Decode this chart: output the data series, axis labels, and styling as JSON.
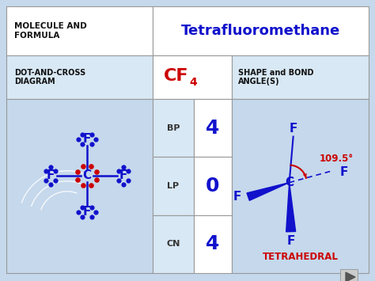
{
  "title": "Tetrafluoromethane",
  "title_color": "#1111CC",
  "bg_color": "#C5D8EC",
  "white_bg": "#FFFFFF",
  "header_bg": "#D8E8F4",
  "formula_color": "#CC0000",
  "bp_label": "BP",
  "bp_value": "4",
  "lp_label": "LP",
  "lp_value": "0",
  "cn_label": "CN",
  "cn_value": "4",
  "shape_label": "TETRAHEDRAL",
  "shape_color": "#CC0000",
  "bond_angle": "109.5°",
  "bond_angle_color": "#CC0000",
  "value_color": "#1111CC",
  "label_color": "#333333",
  "dark_blue": "#1111CC",
  "header_text_color": "#111111"
}
